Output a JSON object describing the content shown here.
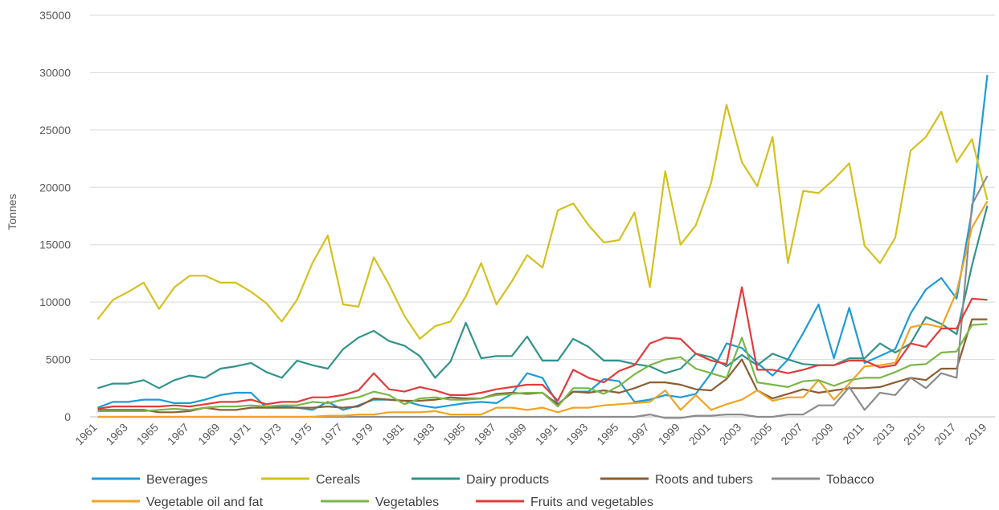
{
  "chart_data": {
    "type": "line",
    "ylabel": "Tonnes",
    "ylim": [
      0,
      35000
    ],
    "yticks": [
      0,
      5000,
      10000,
      15000,
      20000,
      25000,
      30000,
      35000
    ],
    "grid": "horizontal",
    "legend_position": "bottom",
    "x": [
      1961,
      1962,
      1963,
      1964,
      1965,
      1966,
      1967,
      1968,
      1969,
      1970,
      1971,
      1972,
      1973,
      1974,
      1975,
      1976,
      1977,
      1978,
      1979,
      1980,
      1981,
      1982,
      1983,
      1984,
      1985,
      1986,
      1987,
      1988,
      1989,
      1990,
      1991,
      1992,
      1993,
      1994,
      1995,
      1996,
      1997,
      1998,
      1999,
      2000,
      2001,
      2002,
      2003,
      2004,
      2005,
      2006,
      2007,
      2008,
      2009,
      2010,
      2011,
      2012,
      2013,
      2014,
      2015,
      2016,
      2017,
      2018,
      2019
    ],
    "x_tick_labels": [
      "1961",
      "1963",
      "1965",
      "1967",
      "1969",
      "1971",
      "1973",
      "1975",
      "1977",
      "1979",
      "1981",
      "1983",
      "1985",
      "1987",
      "1989",
      "1991",
      "1993",
      "1995",
      "1997",
      "1999",
      "2001",
      "2003",
      "2005",
      "2007",
      "2009",
      "2011",
      "2013",
      "2015",
      "2017",
      "2019"
    ],
    "series": [
      {
        "name": "Beverages",
        "color": "#1f9bd7",
        "values": [
          800,
          1300,
          1300,
          1500,
          1500,
          1200,
          1200,
          1500,
          1900,
          2100,
          2100,
          800,
          900,
          800,
          600,
          1300,
          600,
          1000,
          1500,
          1500,
          1400,
          1000,
          800,
          1000,
          1200,
          1300,
          1200,
          2000,
          3800,
          3400,
          1100,
          2200,
          2200,
          3300,
          3100,
          1300,
          1500,
          1900,
          1700,
          2000,
          3800,
          6400,
          6000,
          4700,
          3600,
          5000,
          7300,
          9800,
          5100,
          9500,
          4700,
          5300,
          5900,
          9000,
          11100,
          12100,
          10300,
          18000,
          29800
        ]
      },
      {
        "name": "Cereals",
        "color": "#d4c11e",
        "values": [
          8500,
          10200,
          10900,
          11700,
          9400,
          11300,
          12300,
          12300,
          11700,
          11700,
          10900,
          9900,
          8300,
          10200,
          13400,
          15800,
          9800,
          9600,
          13900,
          11500,
          8800,
          6800,
          7900,
          8300,
          10500,
          13400,
          9800,
          11800,
          14100,
          13000,
          18000,
          18600,
          16700,
          15200,
          15400,
          17800,
          11300,
          21400,
          15000,
          16700,
          20400,
          27200,
          22200,
          20100,
          24400,
          13400,
          19700,
          19500,
          20700,
          22100,
          14900,
          13400,
          15600,
          23200,
          24400,
          26600,
          22200,
          24200,
          18900
        ]
      },
      {
        "name": "Dairy products",
        "color": "#31938b",
        "values": [
          2500,
          2900,
          2900,
          3200,
          2500,
          3200,
          3600,
          3400,
          4200,
          4400,
          4700,
          3900,
          3400,
          4900,
          4500,
          4200,
          5900,
          6900,
          7500,
          6600,
          6200,
          5300,
          3400,
          4800,
          8200,
          5100,
          5300,
          5300,
          7000,
          4900,
          4900,
          6800,
          6100,
          4900,
          4900,
          4600,
          4400,
          3800,
          4200,
          5500,
          5200,
          4400,
          5400,
          4500,
          5500,
          5000,
          4600,
          4500,
          4500,
          5100,
          5100,
          6400,
          5600,
          6400,
          8700,
          8100,
          7200,
          13200,
          18400
        ]
      },
      {
        "name": "Roots and tubers",
        "color": "#8b5e34",
        "values": [
          600,
          600,
          600,
          600,
          400,
          400,
          500,
          800,
          600,
          600,
          800,
          800,
          800,
          800,
          800,
          900,
          800,
          900,
          1600,
          1500,
          1400,
          1400,
          1500,
          1700,
          1600,
          1600,
          2000,
          2100,
          2000,
          2100,
          1100,
          2200,
          2100,
          2300,
          2100,
          2500,
          3000,
          3000,
          2800,
          2400,
          2300,
          3300,
          5000,
          2300,
          1600,
          2000,
          2400,
          2100,
          2300,
          2500,
          2500,
          2600,
          3000,
          3400,
          3200,
          4200,
          4200,
          8500,
          8500
        ]
      },
      {
        "name": "Tobacco",
        "color": "#8c8c8c",
        "values": [
          0,
          0,
          0,
          0,
          0,
          0,
          0,
          0,
          0,
          0,
          0,
          0,
          0,
          0,
          0,
          0,
          0,
          0,
          0,
          0,
          0,
          0,
          0,
          0,
          0,
          0,
          0,
          0,
          0,
          0,
          0,
          0,
          0,
          0,
          0,
          0,
          200,
          -100,
          -100,
          100,
          100,
          200,
          200,
          0,
          0,
          200,
          200,
          1000,
          1000,
          2600,
          600,
          2100,
          1900,
          3400,
          2500,
          3800,
          3400,
          18500,
          21000
        ]
      },
      {
        "name": "Vegetable oil and fat",
        "color": "#f0a325",
        "values": [
          0,
          0,
          0,
          0,
          0,
          0,
          0,
          0,
          0,
          0,
          0,
          0,
          0,
          0,
          0,
          100,
          100,
          200,
          200,
          400,
          400,
          400,
          500,
          200,
          200,
          200,
          800,
          800,
          600,
          800,
          400,
          800,
          800,
          1000,
          1100,
          1200,
          1300,
          2300,
          600,
          1900,
          600,
          1100,
          1500,
          2300,
          1400,
          1700,
          1700,
          3200,
          1500,
          2900,
          4400,
          4500,
          4700,
          7800,
          8100,
          7800,
          10900,
          16500,
          18800
        ]
      },
      {
        "name": "Vegetables",
        "color": "#7ab648",
        "values": [
          500,
          500,
          500,
          500,
          600,
          700,
          600,
          800,
          900,
          900,
          1000,
          900,
          1000,
          1000,
          1300,
          1200,
          1500,
          1700,
          2200,
          1900,
          1100,
          1600,
          1700,
          1500,
          1500,
          1600,
          1900,
          2000,
          2100,
          2100,
          900,
          2500,
          2500,
          2000,
          2700,
          3700,
          4500,
          5000,
          5200,
          4200,
          3800,
          3400,
          6900,
          3000,
          2800,
          2600,
          3100,
          3200,
          2700,
          3200,
          3400,
          3400,
          3900,
          4500,
          4600,
          5600,
          5700,
          8000,
          8100
        ]
      },
      {
        "name": "Fruits and vegetables",
        "color": "#e23b3b",
        "values": [
          700,
          900,
          900,
          900,
          900,
          1000,
          900,
          1100,
          1300,
          1300,
          1500,
          1100,
          1300,
          1300,
          1700,
          1700,
          1900,
          2300,
          3800,
          2400,
          2200,
          2600,
          2300,
          1900,
          1900,
          2100,
          2400,
          2600,
          2800,
          2800,
          1400,
          4100,
          3400,
          3000,
          4000,
          4500,
          6400,
          6900,
          6800,
          5500,
          4900,
          4600,
          11300,
          4100,
          4100,
          3800,
          4100,
          4500,
          4500,
          4900,
          4900,
          4300,
          4500,
          6400,
          6100,
          7700,
          7700,
          10300,
          10200
        ]
      }
    ]
  }
}
